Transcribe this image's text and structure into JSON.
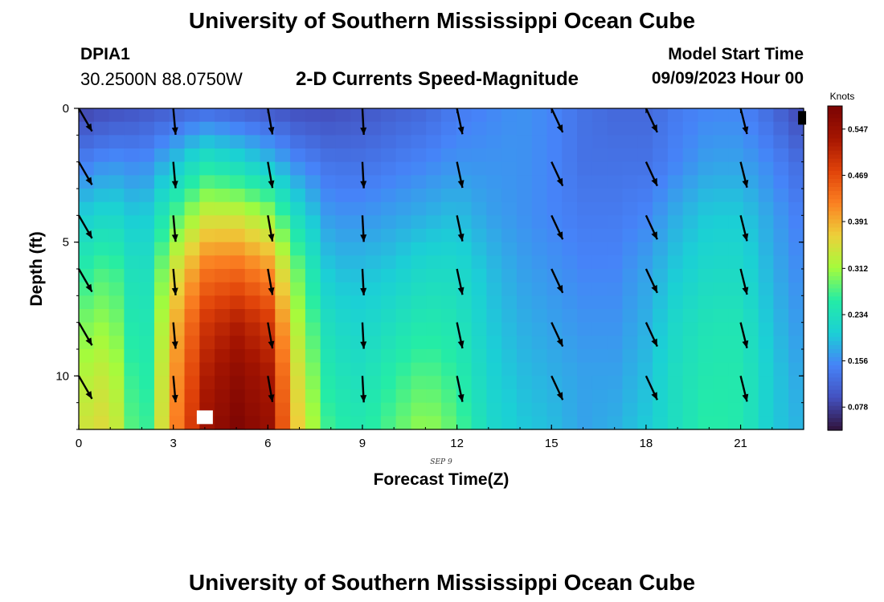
{
  "header": {
    "title": "University of Southern Mississippi Ocean Cube",
    "station_id": "DPIA1",
    "coordinates": "30.2500N  88.0750W",
    "subtitle": "2-D Currents Speed-Magnitude",
    "model_start_label": "Model Start Time",
    "model_start_value": "09/09/2023 Hour 00"
  },
  "footer": {
    "title": "University of Southern Mississippi Ocean Cube"
  },
  "chart_data": {
    "type": "heatmap",
    "title": "2-D Currents Speed-Magnitude",
    "xlabel": "Forecast Time(Z)",
    "ylabel": "Depth (ft)",
    "date_label": "SEP 9",
    "xlim": [
      0,
      23
    ],
    "ylim": [
      12,
      0
    ],
    "x_ticks": [
      0,
      3,
      6,
      9,
      12,
      15,
      18,
      21
    ],
    "x_tick_labels": [
      "0",
      "3",
      "6",
      "9",
      "12",
      "15",
      "18",
      "21"
    ],
    "y_ticks": [
      0,
      5,
      10
    ],
    "y_tick_labels": [
      "0",
      "5",
      "10"
    ],
    "colorbar": {
      "units": "Knots",
      "min": 0.039,
      "max": 0.586,
      "ticks": [
        0.078,
        0.156,
        0.234,
        0.312,
        0.391,
        0.469,
        0.547
      ],
      "tick_labels": [
        "0.078",
        "0.156",
        "0.234",
        "0.312",
        "0.391",
        "0.469",
        "0.547"
      ]
    },
    "speed_profiles_by_hour": [
      [
        0.08,
        0.14,
        0.2,
        0.25,
        0.29,
        0.32,
        0.34
      ],
      [
        0.09,
        0.16,
        0.22,
        0.28,
        0.31,
        0.34,
        0.36
      ],
      [
        0.1,
        0.15,
        0.19,
        0.21,
        0.22,
        0.23,
        0.24
      ],
      [
        0.11,
        0.19,
        0.27,
        0.34,
        0.38,
        0.4,
        0.41
      ],
      [
        0.12,
        0.24,
        0.34,
        0.43,
        0.49,
        0.52,
        0.54
      ],
      [
        0.11,
        0.22,
        0.34,
        0.44,
        0.52,
        0.56,
        0.58
      ],
      [
        0.1,
        0.19,
        0.31,
        0.41,
        0.49,
        0.53,
        0.55
      ],
      [
        0.09,
        0.15,
        0.22,
        0.28,
        0.31,
        0.34,
        0.36
      ],
      [
        0.09,
        0.13,
        0.16,
        0.19,
        0.22,
        0.24,
        0.26
      ],
      [
        0.1,
        0.13,
        0.16,
        0.19,
        0.21,
        0.23,
        0.25
      ],
      [
        0.11,
        0.14,
        0.17,
        0.2,
        0.23,
        0.26,
        0.28
      ],
      [
        0.12,
        0.15,
        0.18,
        0.22,
        0.25,
        0.28,
        0.31
      ],
      [
        0.14,
        0.16,
        0.19,
        0.22,
        0.24,
        0.26,
        0.28
      ],
      [
        0.15,
        0.16,
        0.17,
        0.19,
        0.2,
        0.21,
        0.22
      ],
      [
        0.16,
        0.16,
        0.16,
        0.17,
        0.18,
        0.19,
        0.2
      ],
      [
        0.15,
        0.15,
        0.15,
        0.16,
        0.17,
        0.18,
        0.19
      ],
      [
        0.13,
        0.13,
        0.14,
        0.15,
        0.16,
        0.17,
        0.17
      ],
      [
        0.12,
        0.13,
        0.14,
        0.15,
        0.16,
        0.17,
        0.18
      ],
      [
        0.12,
        0.13,
        0.15,
        0.17,
        0.18,
        0.19,
        0.2
      ],
      [
        0.14,
        0.15,
        0.18,
        0.2,
        0.22,
        0.23,
        0.23
      ],
      [
        0.15,
        0.17,
        0.2,
        0.22,
        0.24,
        0.25,
        0.26
      ],
      [
        0.15,
        0.17,
        0.2,
        0.22,
        0.24,
        0.25,
        0.25
      ],
      [
        0.12,
        0.15,
        0.17,
        0.18,
        0.19,
        0.2,
        0.2
      ],
      [
        0.08,
        0.12,
        0.14,
        0.15,
        0.16,
        0.17,
        0.18
      ]
    ],
    "profile_depths_ft": [
      0,
      2,
      4,
      6,
      8,
      10,
      12
    ],
    "vector_hours": [
      0,
      3,
      6,
      9,
      12,
      15,
      18,
      21
    ],
    "vector_depths_ft": [
      0,
      2,
      4,
      6,
      8,
      10
    ],
    "vector_direction_deg": [
      150,
      175,
      170,
      177,
      168,
      155,
      155,
      166
    ],
    "missing_cells": [
      {
        "hour": 4,
        "depth_ft": 11.8
      },
      {
        "hour": 22.9,
        "depth_ft": 0.1
      }
    ]
  }
}
